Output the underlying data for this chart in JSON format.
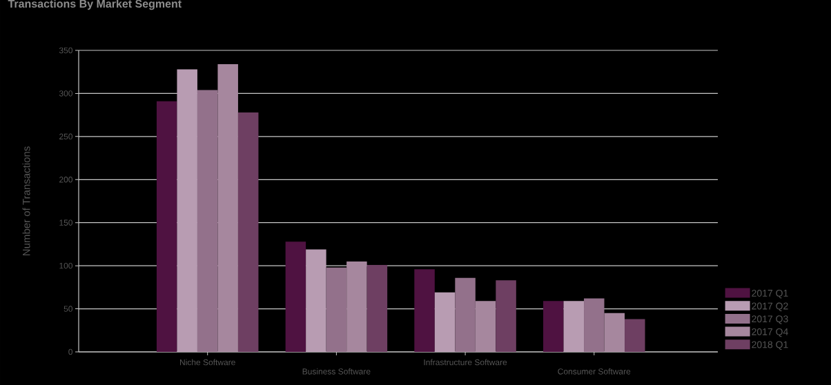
{
  "chart_data": {
    "type": "bar",
    "title": "Transactions By Market Segment",
    "ylabel": "Number of Transactions",
    "categories": [
      "Niche Software",
      "Business Software",
      "Infrastructure Software",
      "Consumer Software"
    ],
    "series": [
      {
        "name": "2017 Q1",
        "color": "#4f1241",
        "values": [
          291,
          128,
          96,
          59
        ]
      },
      {
        "name": "2017 Q2",
        "color": "#b89cb2",
        "values": [
          328,
          119,
          69,
          59
        ]
      },
      {
        "name": "2017 Q3",
        "color": "#93718b",
        "values": [
          304,
          98,
          86,
          62
        ]
      },
      {
        "name": "2017 Q4",
        "color": "#a6879e",
        "values": [
          334,
          105,
          59,
          45
        ]
      },
      {
        "name": "2018 Q1",
        "color": "#6e3f62",
        "values": [
          278,
          101,
          83,
          38
        ]
      }
    ],
    "ylim": [
      0,
      350
    ],
    "yticks": [
      0,
      50,
      100,
      150,
      200,
      250,
      300,
      350
    ],
    "grid": "y",
    "legend": "bottom right"
  }
}
